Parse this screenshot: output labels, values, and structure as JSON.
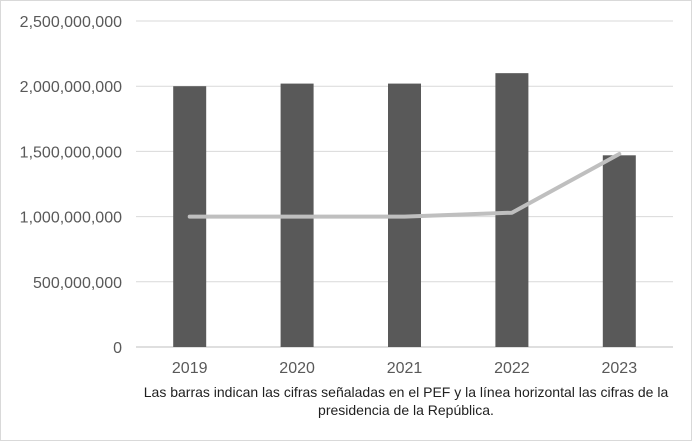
{
  "chart_data": {
    "type": "bar",
    "categories": [
      "2019",
      "2020",
      "2021",
      "2022",
      "2023"
    ],
    "series": [
      {
        "name": "PEF",
        "type": "bar",
        "color": "#595959",
        "values": [
          2000000000,
          2020000000,
          2020000000,
          2100000000,
          1470000000
        ]
      },
      {
        "name": "Presidencia de la República",
        "type": "line",
        "color": "#bfbfbf",
        "values": [
          1000000000,
          1000000000,
          1000000000,
          1030000000,
          1480000000
        ]
      }
    ],
    "ylim": [
      0,
      2500000000
    ],
    "yticks": [
      0,
      500000000,
      1000000000,
      1500000000,
      2000000000,
      2500000000
    ],
    "ytick_labels": [
      "0",
      "500,000,000",
      "1,000,000,000",
      "1,500,000,000",
      "2,000,000,000",
      "2,500,000,000"
    ],
    "grid": true,
    "legend": "none",
    "title": "",
    "xlabel": "",
    "ylabel": ""
  },
  "caption": "Las barras indican las cifras señaladas en el PEF y la línea horizontal las cifras de la presidencia de la República."
}
